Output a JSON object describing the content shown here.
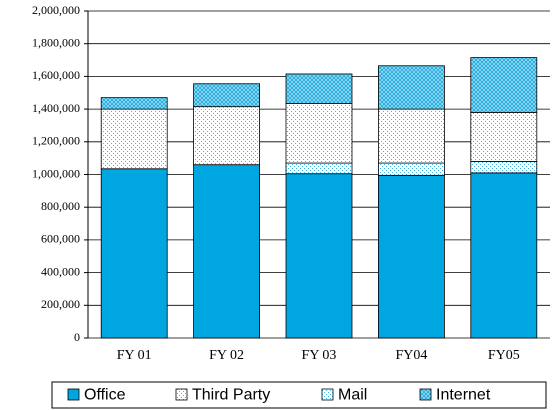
{
  "chart_data": {
    "type": "stacked_bar",
    "categories": [
      "FY 01",
      "FY 02",
      "FY 03",
      "FY04",
      "FY05"
    ],
    "series": [
      {
        "name": "Office",
        "color": "#00a6e0",
        "values": [
          1035000,
          1060000,
          1005000,
          995000,
          1010000
        ]
      },
      {
        "name": "Third Party",
        "color": "#9fd8ee",
        "values": [
          365000,
          355000,
          365000,
          330000,
          300000
        ]
      },
      {
        "name": "Mail",
        "color": "#7fc8e4",
        "values": [
          0,
          0,
          65000,
          75000,
          70000
        ]
      },
      {
        "name": "Internet",
        "color": "#5cc4ea",
        "values": [
          70000,
          140000,
          180000,
          265000,
          335000
        ]
      }
    ],
    "ylim": [
      0,
      2000000
    ],
    "yticks": [
      0,
      {
        "value": 200000,
        "label": "200,000"
      },
      {
        "value": 400000,
        "label": "400,000"
      },
      {
        "value": 600000,
        "label": "600,000"
      },
      {
        "value": 800000,
        "label": "800,000"
      },
      {
        "value": 1000000,
        "label": "1,000,000"
      },
      {
        "value": 1200000,
        "label": "1,200,000"
      },
      {
        "value": 1400000,
        "label": "1,400,000"
      },
      {
        "value": 1600000,
        "label": "1,600,000"
      },
      {
        "value": 1800000,
        "label": "1,800,000"
      },
      {
        "value": 2000000,
        "label": "2,000,000"
      }
    ],
    "grid": true,
    "legend": "bottom"
  }
}
